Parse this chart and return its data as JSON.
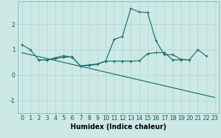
{
  "title": "",
  "xlabel": "Humidex (Indice chaleur)",
  "ylabel": "",
  "background_color": "#cce9e6",
  "grid_color": "#aed4d0",
  "line_color": "#1a7068",
  "xlim": [
    -0.5,
    23.5
  ],
  "ylim": [
    -1.5,
    2.9
  ],
  "yticks": [
    -1,
    0,
    1,
    2
  ],
  "xticks": [
    0,
    1,
    2,
    3,
    4,
    5,
    6,
    7,
    8,
    9,
    10,
    11,
    12,
    13,
    14,
    15,
    16,
    17,
    18,
    19,
    20,
    21,
    22,
    23
  ],
  "series1": [
    1.2,
    1.0,
    0.6,
    0.6,
    0.65,
    0.7,
    0.72,
    0.35,
    0.38,
    0.42,
    0.55,
    1.4,
    1.52,
    2.62,
    2.48,
    2.46,
    1.35,
    0.8,
    0.8,
    0.62,
    0.6,
    1.0,
    0.75,
    null
  ],
  "series2": [
    null,
    null,
    0.6,
    0.6,
    0.68,
    0.76,
    0.7,
    0.36,
    0.4,
    0.44,
    0.55,
    0.55,
    0.55,
    0.55,
    0.56,
    0.84,
    0.88,
    0.88,
    0.6,
    0.6,
    0.6,
    null,
    null,
    null
  ],
  "series3_x": [
    0,
    23
  ],
  "series3_y": [
    0.88,
    -0.88
  ],
  "font_size_label": 7,
  "font_size_tick": 6,
  "marker_size": 3,
  "marker_ew": 0.8,
  "line_width": 0.9
}
